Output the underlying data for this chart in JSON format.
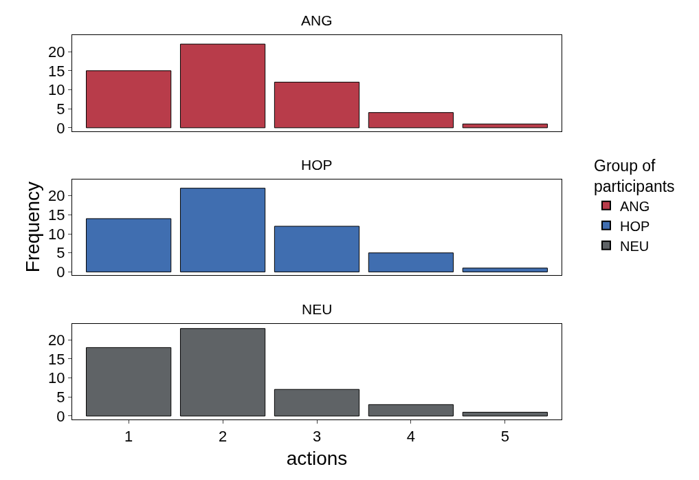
{
  "chart_data": [
    {
      "type": "bar",
      "title": "ANG",
      "categories": [
        "1",
        "2",
        "3",
        "4",
        "5"
      ],
      "series": [
        {
          "name": "ANG",
          "color": "#b83c4a",
          "values": [
            15,
            22,
            12,
            4,
            1
          ]
        }
      ],
      "ylim": [
        -0.9,
        24.3
      ],
      "yticks": [
        0,
        5,
        10,
        15,
        20
      ],
      "tick_labels": "y",
      "legend": "right"
    },
    {
      "type": "bar",
      "title": "HOP",
      "ylabel": "Frequency",
      "legend_title": "Group of participants",
      "categories": [
        "1",
        "2",
        "3",
        "4",
        "5"
      ],
      "series": [
        {
          "name": "HOP",
          "color": "#406eb0",
          "values": [
            14,
            22,
            12,
            5,
            1
          ]
        }
      ],
      "ylim": [
        -0.9,
        24.3
      ],
      "yticks": [
        0,
        5,
        10,
        15,
        20
      ],
      "tick_labels": "y",
      "legend": "right"
    },
    {
      "type": "bar",
      "title": "NEU",
      "xlabel": "actions",
      "categories": [
        "1",
        "2",
        "3",
        "4",
        "5"
      ],
      "series": [
        {
          "name": "NEU",
          "color": "#5f6366",
          "values": [
            18,
            23,
            7,
            3,
            1
          ]
        }
      ],
      "ylim": [
        -0.9,
        24.3
      ],
      "yticks": [
        0,
        5,
        10,
        15,
        20
      ],
      "legend": "right"
    }
  ]
}
